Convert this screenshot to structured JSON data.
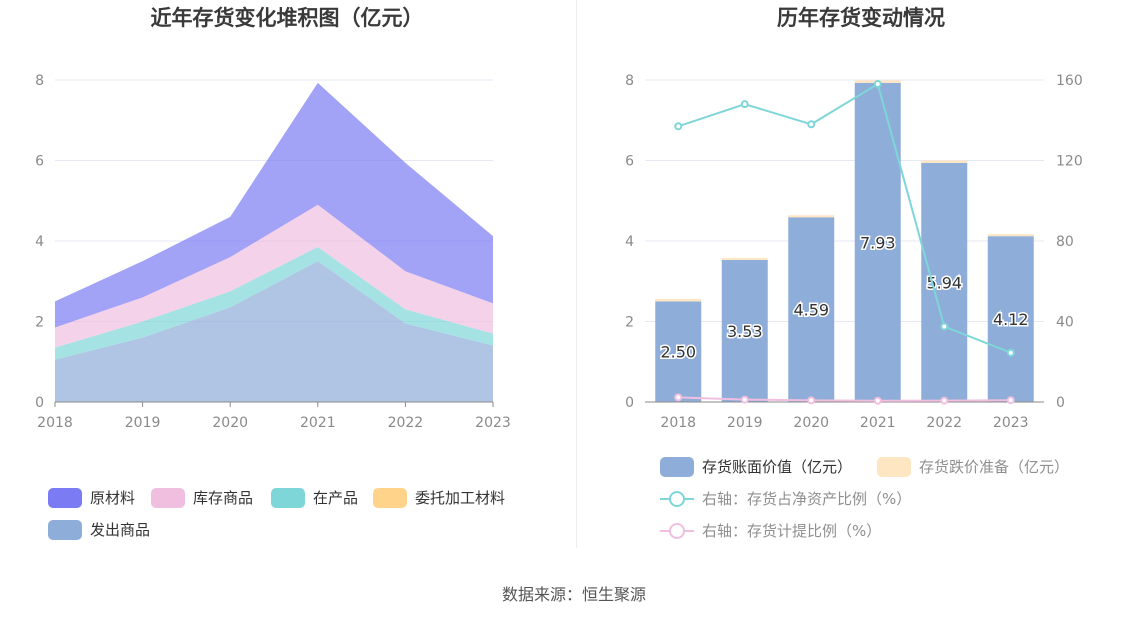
{
  "source": "数据来源：恒生聚源",
  "chart_data": [
    {
      "type": "area",
      "title": "近年存货变化堆积图（亿元）",
      "stacked": true,
      "categories": [
        "2018",
        "2019",
        "2020",
        "2021",
        "2022",
        "2023"
      ],
      "ylim": [
        0,
        8
      ],
      "yticks": [
        "0",
        "2",
        "4",
        "6",
        "8"
      ],
      "series": [
        {
          "name": "发出商品",
          "color": "#8fadd9",
          "values": [
            1.05,
            1.6,
            2.35,
            3.5,
            1.95,
            1.4
          ]
        },
        {
          "name": "在产品",
          "color": "#7fd6d8",
          "values": [
            0.3,
            0.4,
            0.4,
            0.35,
            0.35,
            0.3
          ]
        },
        {
          "name": "库存商品",
          "color": "#f0bfe0",
          "values": [
            0.5,
            0.6,
            0.85,
            1.05,
            0.95,
            0.75
          ]
        },
        {
          "name": "委托加工材料",
          "color": "#ffd48a",
          "values": [
            0,
            0,
            0,
            0,
            0,
            0
          ]
        },
        {
          "name": "原材料",
          "color": "#7b7bf4",
          "values": [
            0.65,
            0.9,
            1.0,
            3.03,
            2.69,
            1.67
          ]
        }
      ],
      "legend": [
        {
          "name": "原材料",
          "color": "#7b7bf4"
        },
        {
          "name": "库存商品",
          "color": "#f0bfe0"
        },
        {
          "name": "在产品",
          "color": "#7fd6d8"
        },
        {
          "name": "委托加工材料",
          "color": "#ffd48a"
        },
        {
          "name": "发出商品",
          "color": "#8fadd9"
        }
      ]
    },
    {
      "type": "bar",
      "title": "历年存货变动情况",
      "categories": [
        "2018",
        "2019",
        "2020",
        "2021",
        "2022",
        "2023"
      ],
      "ylim": [
        0,
        8
      ],
      "yticks": [
        "0",
        "2",
        "4",
        "6",
        "8"
      ],
      "ylim_right": [
        0,
        160
      ],
      "yticks_right": [
        "0",
        "40",
        "80",
        "120",
        "160"
      ],
      "bars": [
        {
          "name": "存货账面价值（亿元）",
          "color": "#8fadd9",
          "values": [
            2.5,
            3.53,
            4.59,
            7.93,
            5.94,
            4.12
          ],
          "labels": [
            "2.50",
            "3.53",
            "4.59",
            "7.93",
            "5.94",
            "4.12"
          ]
        },
        {
          "name": "存货跌价准备（亿元）",
          "color": "#ffe6c2",
          "values": [
            0.06,
            0.05,
            0.05,
            0.06,
            0.06,
            0.05
          ]
        }
      ],
      "lines": [
        {
          "name": "右轴：存货占净资产比例（%）",
          "color": "#7fd6d8",
          "axis": "right",
          "values": [
            137,
            148,
            138,
            158,
            37.5,
            24.5
          ]
        },
        {
          "name": "右轴：存货计提比例（%）",
          "color": "#f0bfe0",
          "axis": "right",
          "values": [
            2.3,
            1.2,
            0.8,
            0.6,
            0.7,
            0.9
          ]
        }
      ]
    }
  ]
}
